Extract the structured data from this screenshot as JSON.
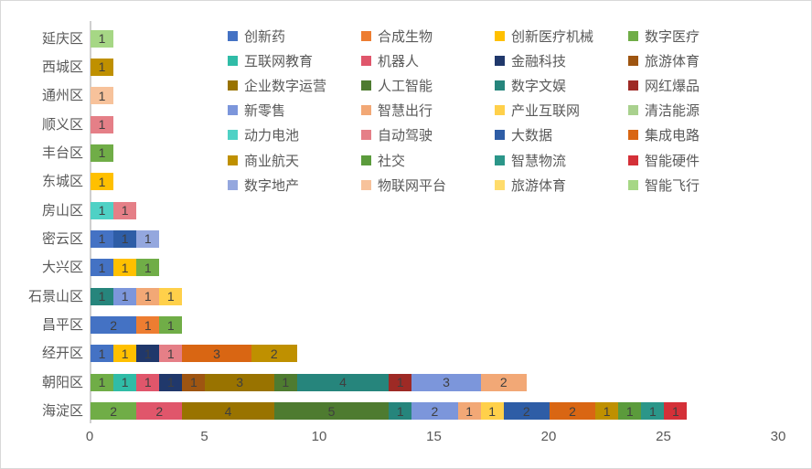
{
  "chart_data": {
    "type": "bar",
    "orientation": "horizontal",
    "stacked": true,
    "title": "",
    "xlabel": "",
    "ylabel": "",
    "x_axis": {
      "min": 0,
      "max": 30,
      "ticks": [
        0,
        5,
        10,
        15,
        20,
        25,
        30
      ],
      "grid": false
    },
    "legend": {
      "position": "top-right",
      "columns": 4,
      "items": [
        {
          "name": "创新药",
          "color": "#4472C4"
        },
        {
          "name": "合成生物",
          "color": "#ED7D31"
        },
        {
          "name": "创新医疗机械",
          "color": "#FFC000"
        },
        {
          "name": "数字医疗",
          "color": "#70AD47"
        },
        {
          "name": "互联网教育",
          "color": "#30BCA7"
        },
        {
          "name": "机器人",
          "color": "#E0566B"
        },
        {
          "name": "金融科技",
          "color": "#20386B"
        },
        {
          "name": "旅游体育",
          "color": "#9E5511"
        },
        {
          "name": "企业数字运营",
          "color": "#997300"
        },
        {
          "name": "人工智能",
          "color": "#4E7B30"
        },
        {
          "name": "数字文娱",
          "color": "#26857C"
        },
        {
          "name": "网红爆品",
          "color": "#9E2A25"
        },
        {
          "name": "新零售",
          "color": "#7C96DB"
        },
        {
          "name": "智慧出行",
          "color": "#F2A876"
        },
        {
          "name": "产业互联网",
          "color": "#FFD04A"
        },
        {
          "name": "清洁能源",
          "color": "#A9D18E"
        },
        {
          "name": "动力电池",
          "color": "#4FD1C5"
        },
        {
          "name": "自动驾驶",
          "color": "#E57F87"
        },
        {
          "name": "大数据",
          "color": "#2E5DA6"
        },
        {
          "name": "集成电路",
          "color": "#D96613"
        },
        {
          "name": "商业航天",
          "color": "#BF9000"
        },
        {
          "name": "社交",
          "color": "#5B9B3C"
        },
        {
          "name": "智慧物流",
          "color": "#2B9689"
        },
        {
          "name": "智能硬件",
          "color": "#D43038"
        },
        {
          "name": "数字地产",
          "color": "#94A7DE"
        },
        {
          "name": "物联网平台",
          "color": "#F7C29B"
        },
        {
          "name": "旅游体育",
          "color": "#FFDC6B"
        },
        {
          "name": "智能飞行",
          "color": "#A6D785"
        }
      ]
    },
    "rows": [
      {
        "district": "延庆区",
        "total": 1,
        "segments": [
          {
            "series": "智能飞行",
            "legend_index": 27,
            "value": 1
          }
        ]
      },
      {
        "district": "西城区",
        "total": 1,
        "segments": [
          {
            "series": "商业航天",
            "legend_index": 20,
            "value": 1
          }
        ]
      },
      {
        "district": "通州区",
        "total": 1,
        "segments": [
          {
            "series": "物联网平台",
            "legend_index": 25,
            "value": 1
          }
        ]
      },
      {
        "district": "顺义区",
        "total": 1,
        "segments": [
          {
            "series": "自动驾驶",
            "legend_index": 17,
            "value": 1
          }
        ]
      },
      {
        "district": "丰台区",
        "total": 1,
        "segments": [
          {
            "series": "数字医疗",
            "legend_index": 3,
            "value": 1
          }
        ]
      },
      {
        "district": "东城区",
        "total": 1,
        "segments": [
          {
            "series": "创新医疗机械",
            "legend_index": 2,
            "value": 1
          }
        ]
      },
      {
        "district": "房山区",
        "total": 2,
        "segments": [
          {
            "series": "动力电池",
            "legend_index": 16,
            "value": 1
          },
          {
            "series": "自动驾驶",
            "legend_index": 17,
            "value": 1
          }
        ]
      },
      {
        "district": "密云区",
        "total": 3,
        "segments": [
          {
            "series": "创新药",
            "legend_index": 0,
            "value": 1
          },
          {
            "series": "大数据",
            "legend_index": 18,
            "value": 1
          },
          {
            "series": "数字地产",
            "legend_index": 24,
            "value": 1
          }
        ]
      },
      {
        "district": "大兴区",
        "total": 3,
        "segments": [
          {
            "series": "创新药",
            "legend_index": 0,
            "value": 1
          },
          {
            "series": "创新医疗机械",
            "legend_index": 2,
            "value": 1
          },
          {
            "series": "数字医疗",
            "legend_index": 3,
            "value": 1
          }
        ]
      },
      {
        "district": "石景山区",
        "total": 4,
        "segments": [
          {
            "series": "数字文娱",
            "legend_index": 10,
            "value": 1
          },
          {
            "series": "新零售",
            "legend_index": 12,
            "value": 1
          },
          {
            "series": "智慧出行",
            "legend_index": 13,
            "value": 1
          },
          {
            "series": "产业互联网",
            "legend_index": 14,
            "value": 1
          }
        ]
      },
      {
        "district": "昌平区",
        "total": 4,
        "segments": [
          {
            "series": "创新药",
            "legend_index": 0,
            "value": 2
          },
          {
            "series": "合成生物",
            "legend_index": 1,
            "value": 1
          },
          {
            "series": "数字医疗",
            "legend_index": 3,
            "value": 1
          }
        ]
      },
      {
        "district": "经开区",
        "total": 9,
        "segments": [
          {
            "series": "创新药",
            "legend_index": 0,
            "value": 1
          },
          {
            "series": "创新医疗机械",
            "legend_index": 2,
            "value": 1
          },
          {
            "series": "金融科技",
            "legend_index": 6,
            "value": 1
          },
          {
            "series": "自动驾驶",
            "legend_index": 17,
            "value": 1
          },
          {
            "series": "集成电路",
            "legend_index": 19,
            "value": 3
          },
          {
            "series": "商业航天",
            "legend_index": 20,
            "value": 2
          }
        ]
      },
      {
        "district": "朝阳区",
        "total": 19,
        "segments": [
          {
            "series": "数字医疗",
            "legend_index": 3,
            "value": 1
          },
          {
            "series": "互联网教育",
            "legend_index": 4,
            "value": 1
          },
          {
            "series": "机器人",
            "legend_index": 5,
            "value": 1
          },
          {
            "series": "金融科技",
            "legend_index": 6,
            "value": 1
          },
          {
            "series": "旅游体育",
            "legend_index": 7,
            "value": 1
          },
          {
            "series": "企业数字运营",
            "legend_index": 8,
            "value": 3
          },
          {
            "series": "人工智能",
            "legend_index": 9,
            "value": 1
          },
          {
            "series": "数字文娱",
            "legend_index": 10,
            "value": 4
          },
          {
            "series": "网红爆品",
            "legend_index": 11,
            "value": 1
          },
          {
            "series": "新零售",
            "legend_index": 12,
            "value": 3
          },
          {
            "series": "智慧出行",
            "legend_index": 13,
            "value": 2
          }
        ]
      },
      {
        "district": "海淀区",
        "total": 26,
        "segments": [
          {
            "series": "数字医疗",
            "legend_index": 3,
            "value": 2
          },
          {
            "series": "机器人",
            "legend_index": 5,
            "value": 2
          },
          {
            "series": "企业数字运营",
            "legend_index": 8,
            "value": 4
          },
          {
            "series": "人工智能",
            "legend_index": 9,
            "value": 5
          },
          {
            "series": "数字文娱",
            "legend_index": 10,
            "value": 1
          },
          {
            "series": "新零售",
            "legend_index": 12,
            "value": 2
          },
          {
            "series": "智慧出行",
            "legend_index": 13,
            "value": 1
          },
          {
            "series": "产业互联网",
            "legend_index": 14,
            "value": 1
          },
          {
            "series": "大数据",
            "legend_index": 18,
            "value": 2
          },
          {
            "series": "集成电路",
            "legend_index": 19,
            "value": 2
          },
          {
            "series": "商业航天",
            "legend_index": 20,
            "value": 1
          },
          {
            "series": "社交",
            "legend_index": 21,
            "value": 1
          },
          {
            "series": "智慧物流",
            "legend_index": 22,
            "value": 1
          },
          {
            "series": "智能硬件",
            "legend_index": 23,
            "value": 1
          }
        ]
      }
    ],
    "colors": {
      "axis_text": "#595959",
      "value_label": "#3F3F3F",
      "axis_line": "#CFCFCF",
      "background": "#FFFFFF",
      "border": "#D8D8D8"
    }
  }
}
